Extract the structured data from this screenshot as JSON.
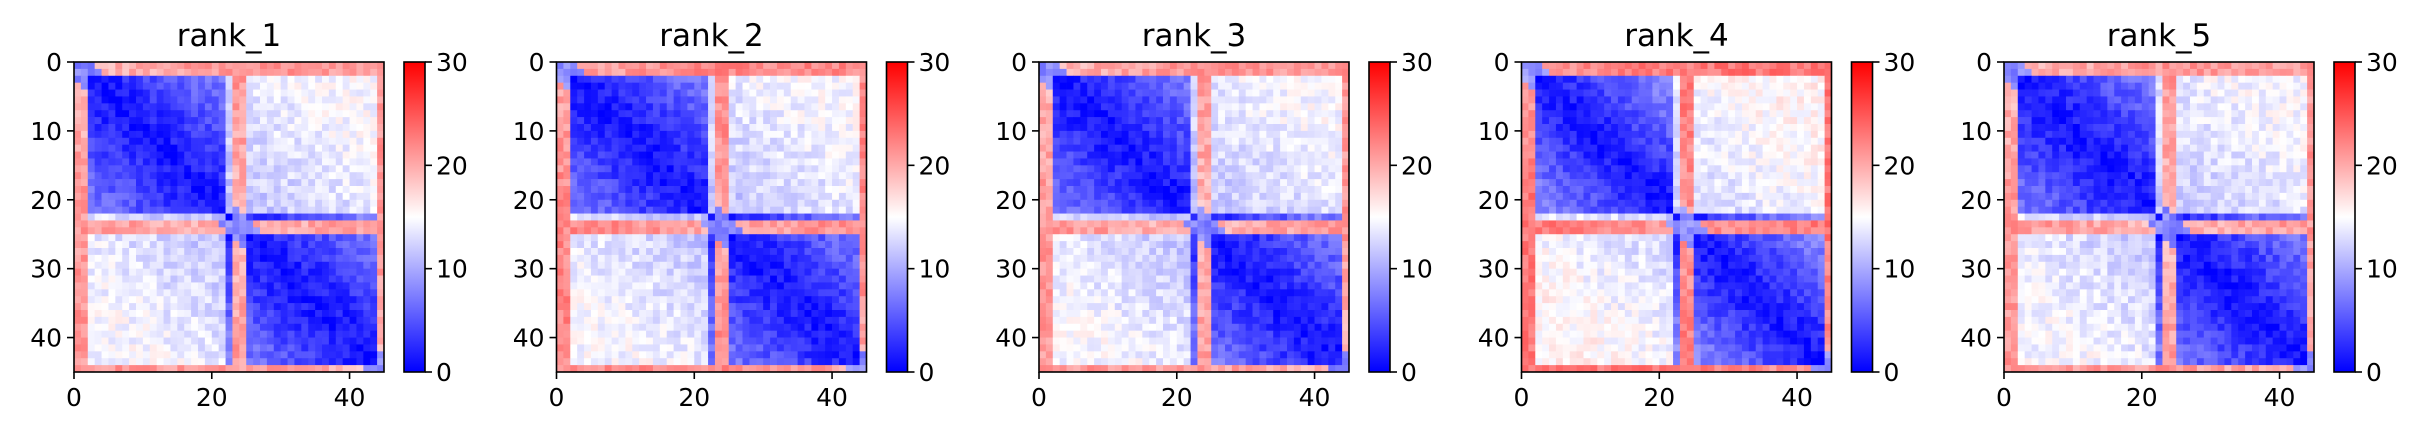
{
  "chart_data": [
    {
      "type": "heatmap",
      "title": "rank_1",
      "matrix_size": 45,
      "xlim": [
        0,
        45
      ],
      "ylim": [
        45,
        0
      ],
      "xticks": [
        0,
        20,
        40
      ],
      "yticks": [
        0,
        10,
        20,
        30,
        40
      ],
      "colorbar": {
        "min": 0,
        "max": 30,
        "ticks": [
          0,
          10,
          20,
          30
        ],
        "colormap": "bwr",
        "low_color": "#0000ff",
        "mid_color": "#ffffff",
        "high_color": "#ff0000"
      },
      "pattern": {
        "diagonal": 1,
        "block_a": [
          0,
          21
        ],
        "block_b": [
          22,
          45
        ],
        "within_block": 6,
        "between_blocks": 14,
        "hot_rows": [
          0,
          1,
          23,
          24,
          44
        ],
        "hot_value": 22
      }
    },
    {
      "type": "heatmap",
      "title": "rank_2",
      "matrix_size": 45,
      "xlim": [
        0,
        45
      ],
      "ylim": [
        45,
        0
      ],
      "xticks": [
        0,
        20,
        40
      ],
      "yticks": [
        0,
        10,
        20,
        30,
        40
      ],
      "colorbar": {
        "min": 0,
        "max": 30,
        "ticks": [
          0,
          10,
          20,
          30
        ],
        "colormap": "bwr",
        "low_color": "#0000ff",
        "mid_color": "#ffffff",
        "high_color": "#ff0000"
      },
      "pattern": {
        "diagonal": 1,
        "block_a": [
          0,
          21
        ],
        "block_b": [
          22,
          45
        ],
        "within_block": 6,
        "between_blocks": 14,
        "hot_rows": [
          0,
          1,
          23,
          24,
          44
        ],
        "hot_value": 23
      }
    },
    {
      "type": "heatmap",
      "title": "rank_3",
      "matrix_size": 45,
      "xlim": [
        0,
        45
      ],
      "ylim": [
        45,
        0
      ],
      "xticks": [
        0,
        20,
        40
      ],
      "yticks": [
        0,
        10,
        20,
        30,
        40
      ],
      "colorbar": {
        "min": 0,
        "max": 30,
        "ticks": [
          0,
          10,
          20,
          30
        ],
        "colormap": "bwr",
        "low_color": "#0000ff",
        "mid_color": "#ffffff",
        "high_color": "#ff0000"
      },
      "pattern": {
        "diagonal": 1,
        "block_a": [
          0,
          21
        ],
        "block_b": [
          22,
          45
        ],
        "within_block": 6,
        "between_blocks": 14,
        "hot_rows": [
          0,
          1,
          23,
          24,
          44
        ],
        "hot_value": 22
      }
    },
    {
      "type": "heatmap",
      "title": "rank_4",
      "matrix_size": 45,
      "xlim": [
        0,
        45
      ],
      "ylim": [
        45,
        0
      ],
      "xticks": [
        0,
        20,
        40
      ],
      "yticks": [
        0,
        10,
        20,
        30,
        40
      ],
      "colorbar": {
        "min": 0,
        "max": 30,
        "ticks": [
          0,
          10,
          20,
          30
        ],
        "colormap": "bwr",
        "low_color": "#0000ff",
        "mid_color": "#ffffff",
        "high_color": "#ff0000"
      },
      "pattern": {
        "diagonal": 1,
        "block_a": [
          0,
          21
        ],
        "block_b": [
          22,
          45
        ],
        "within_block": 7,
        "between_blocks": 15,
        "hot_rows": [
          0,
          1,
          23,
          24,
          44
        ],
        "hot_value": 24
      }
    },
    {
      "type": "heatmap",
      "title": "rank_5",
      "matrix_size": 45,
      "xlim": [
        0,
        45
      ],
      "ylim": [
        45,
        0
      ],
      "xticks": [
        0,
        20,
        40
      ],
      "yticks": [
        0,
        10,
        20,
        30,
        40
      ],
      "colorbar": {
        "min": 0,
        "max": 30,
        "ticks": [
          0,
          10,
          20,
          30
        ],
        "colormap": "bwr",
        "low_color": "#0000ff",
        "mid_color": "#ffffff",
        "high_color": "#ff0000"
      },
      "pattern": {
        "diagonal": 1,
        "block_a": [
          0,
          21
        ],
        "block_b": [
          22,
          45
        ],
        "within_block": 6,
        "between_blocks": 14,
        "hot_rows": [
          0,
          1,
          23,
          24,
          44
        ],
        "hot_value": 22
      }
    }
  ]
}
